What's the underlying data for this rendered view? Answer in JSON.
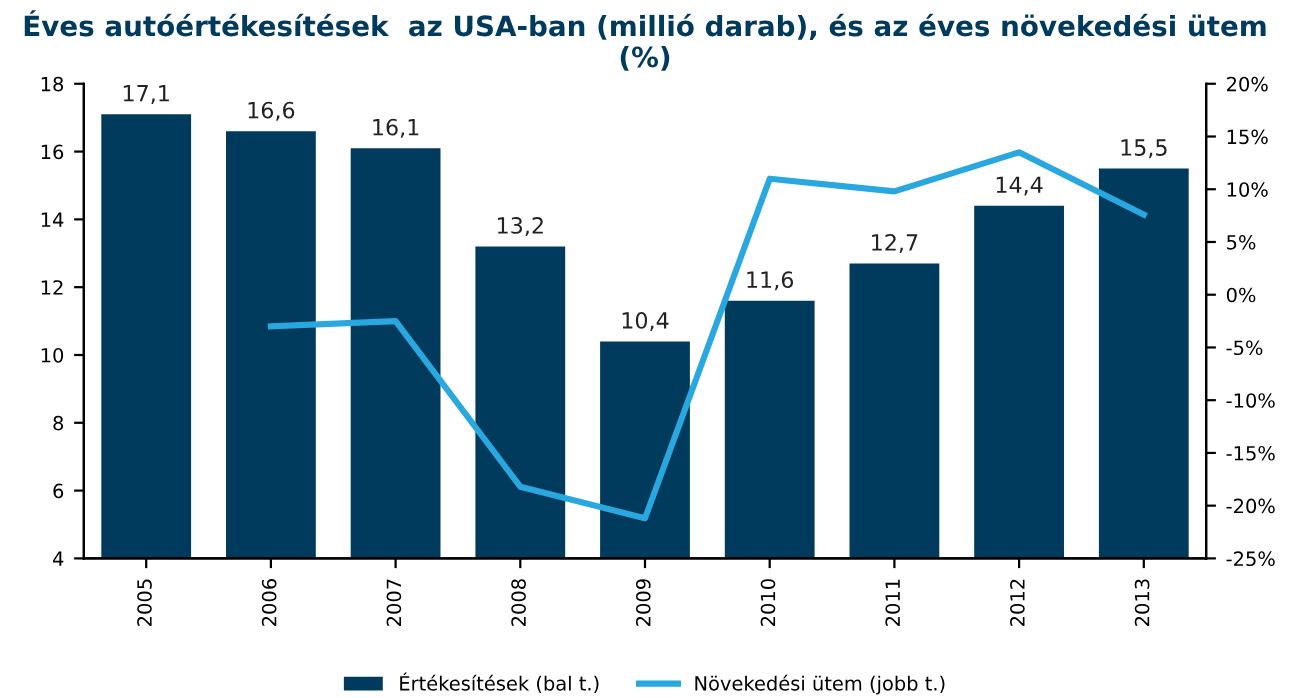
{
  "chart_data": {
    "type": "bar",
    "title": "Éves autóértékesítések  az USA-ban (millió darab), és az éves növekedési ütem\n(%)",
    "categories": [
      "2005",
      "2006",
      "2007",
      "2008",
      "2009",
      "2010",
      "2011",
      "2012",
      "2013"
    ],
    "series": [
      {
        "name": "Értékesítések (bal t.)",
        "color": "#003a5d",
        "values": [
          17.1,
          16.6,
          16.1,
          13.2,
          10.4,
          11.6,
          12.7,
          14.4,
          15.5
        ],
        "value_labels": [
          "17,1",
          "16,6",
          "16,1",
          "13,2",
          "10,4",
          "11,6",
          "12,7",
          "14,4",
          "15,5"
        ]
      },
      {
        "name": "Növekedési ütem (jobb t.)",
        "type": "line",
        "axis": "y2",
        "color": "#29a8e0",
        "values": [
          null,
          -3.0,
          -2.5,
          -18.2,
          -21.2,
          11.0,
          9.8,
          13.5,
          7.6
        ]
      }
    ],
    "ylim": [
      4,
      18
    ],
    "yticks": [
      4,
      6,
      8,
      10,
      12,
      14,
      16,
      18
    ],
    "y2lim": [
      -25,
      20
    ],
    "y2ticks": [
      {
        "value": -25,
        "label": "-25%"
      },
      {
        "value": -20,
        "label": "-20%"
      },
      {
        "value": -15,
        "label": "-15%"
      },
      {
        "value": -10,
        "label": "-10%"
      },
      {
        "value": -5,
        "label": "-5%"
      },
      {
        "value": 0,
        "label": "0%"
      },
      {
        "value": 5,
        "label": "5%"
      },
      {
        "value": 10,
        "label": "10%"
      },
      {
        "value": 15,
        "label": "15%"
      },
      {
        "value": 20,
        "label": "20%"
      }
    ],
    "grid": false,
    "legend": "bottom",
    "marker": "none",
    "line_style": "solid"
  }
}
